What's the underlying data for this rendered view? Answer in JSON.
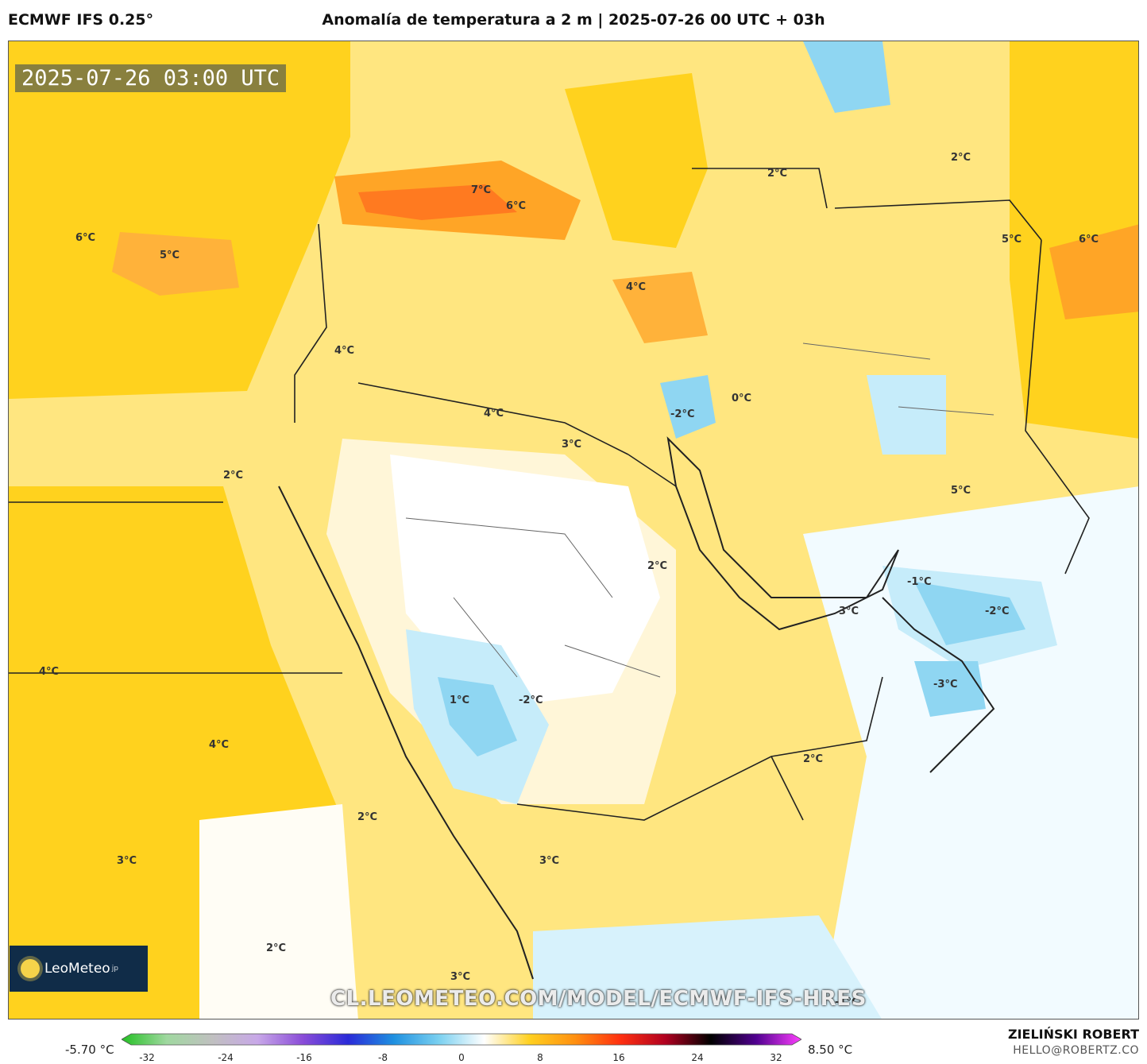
{
  "header": {
    "model": "ECMWF IFS 0.25°",
    "title": "Anomalía de temperatura a 2 m | 2025-07-26 00 UTC + 03h"
  },
  "map": {
    "timestamp": "2025-07-26 03:00 UTC",
    "watermark": "CL.LEOMETEO.COM/MODEL/ECMWF-IFS-HRES",
    "logo": {
      "name": "LeoMeteo",
      "suffix": "jp"
    },
    "labels": [
      "6°C",
      "5°C",
      "7°C",
      "6°C",
      "2°C",
      "2°C",
      "5°C",
      "6°C",
      "4°C",
      "4°C",
      "4°C",
      "3°C",
      "-2°C",
      "0°C",
      "2°C",
      "5°C",
      "2°C",
      "-1°C",
      "-2°C",
      "3°C",
      "4°C",
      "1°C",
      "-2°C",
      "-3°C",
      "4°C",
      "2°C",
      "2°C",
      "3°C",
      "3°C",
      "2°C",
      "3°C",
      "-1°C"
    ]
  },
  "colorbar": {
    "min_label": "-5.70 °C",
    "max_label": "8.50 °C",
    "ticks": [
      "-32",
      "-24",
      "-16",
      "-8",
      "0",
      "8",
      "16",
      "24",
      "32"
    ],
    "colors": [
      "#22c022",
      "#a0d8a0",
      "#c0c0c0",
      "#c8a8e8",
      "#8a4cd8",
      "#2a2ad8",
      "#1e90e0",
      "#7ad0f0",
      "#ffffff",
      "#ffd020",
      "#ff9010",
      "#ff3010",
      "#b00020",
      "#000000",
      "#500090",
      "#ff40ff"
    ]
  },
  "footer": {
    "author": "ZIELIŃSKI ROBERT",
    "email": "HELLO@ROBERTZ.CO"
  }
}
